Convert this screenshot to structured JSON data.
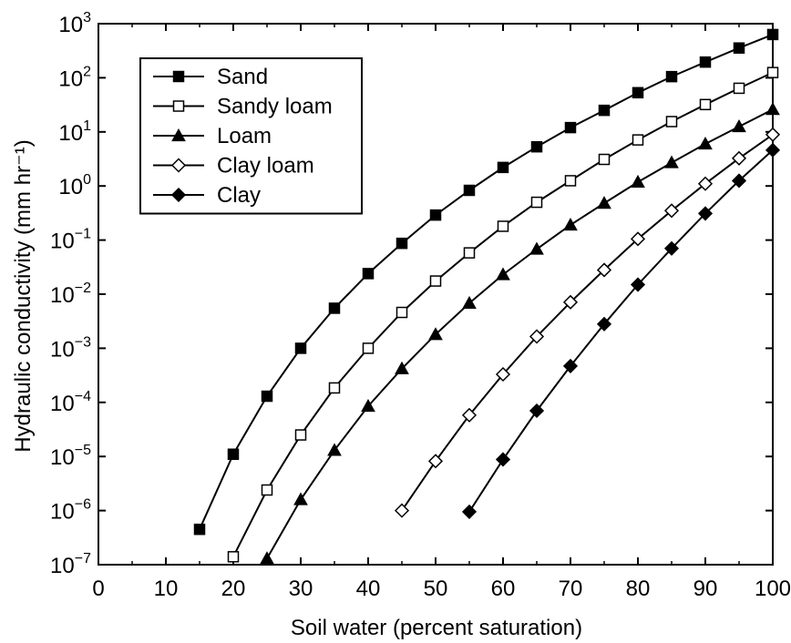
{
  "chart_data": {
    "type": "line",
    "title": "",
    "xlabel": "Soil water (percent saturation)",
    "ylabel": "Hydraulic conductivity (mm hr⁻¹)",
    "xlim": [
      0,
      100
    ],
    "ylim_log10": [
      -7,
      3
    ],
    "yscale": "log",
    "grid": false,
    "legend_position": "top-left",
    "x_ticks": [
      0,
      10,
      20,
      30,
      40,
      50,
      60,
      70,
      80,
      90,
      100
    ],
    "y_tick_exponents": [
      3,
      2,
      1,
      0,
      -1,
      -2,
      -3,
      -4,
      -5,
      -6,
      -7
    ],
    "y_tick_base": "10",
    "series": [
      {
        "name": "Sand",
        "marker": "filled-square",
        "x": [
          15,
          20,
          25,
          30,
          35,
          40,
          45,
          50,
          55,
          60,
          65,
          70,
          75,
          80,
          85,
          90,
          95,
          100
        ],
        "y": [
          4.5e-07,
          1.1e-05,
          0.00013,
          0.001,
          0.0055,
          0.024,
          0.087,
          0.29,
          0.83,
          2.2,
          5.3,
          12,
          25,
          53,
          105,
          195,
          355,
          630
        ]
      },
      {
        "name": "Sandy loam",
        "marker": "open-square",
        "x": [
          20,
          25,
          30,
          35,
          40,
          45,
          50,
          55,
          60,
          65,
          70,
          75,
          80,
          85,
          90,
          95,
          100
        ],
        "y": [
          1.4e-07,
          2.4e-06,
          2.5e-05,
          0.000185,
          0.001,
          0.0046,
          0.0175,
          0.058,
          0.18,
          0.5,
          1.25,
          3.1,
          7.1,
          15.5,
          32,
          64,
          125
        ]
      },
      {
        "name": "Loam",
        "marker": "filled-triangle",
        "x": [
          25,
          30,
          35,
          40,
          45,
          50,
          55,
          60,
          65,
          70,
          75,
          80,
          85,
          90,
          95,
          100
        ],
        "y": [
          1.3e-07,
          1.6e-06,
          1.3e-05,
          8.5e-05,
          0.00042,
          0.0018,
          0.0068,
          0.023,
          0.068,
          0.19,
          0.48,
          1.18,
          2.7,
          6.0,
          12.5,
          26
        ]
      },
      {
        "name": "Clay loam",
        "marker": "open-diamond",
        "x": [
          45,
          50,
          55,
          60,
          65,
          70,
          75,
          80,
          85,
          90,
          95,
          100
        ],
        "y": [
          1e-06,
          8.2e-06,
          5.8e-05,
          0.00033,
          0.00165,
          0.0071,
          0.028,
          0.105,
          0.35,
          1.1,
          3.25,
          8.9
        ]
      },
      {
        "name": "Clay",
        "marker": "filled-diamond",
        "x": [
          55,
          60,
          65,
          70,
          75,
          80,
          85,
          90,
          95,
          100
        ],
        "y": [
          9.5e-07,
          8.8e-06,
          7e-05,
          0.00047,
          0.0028,
          0.015,
          0.07,
          0.31,
          1.25,
          4.6
        ]
      }
    ]
  }
}
